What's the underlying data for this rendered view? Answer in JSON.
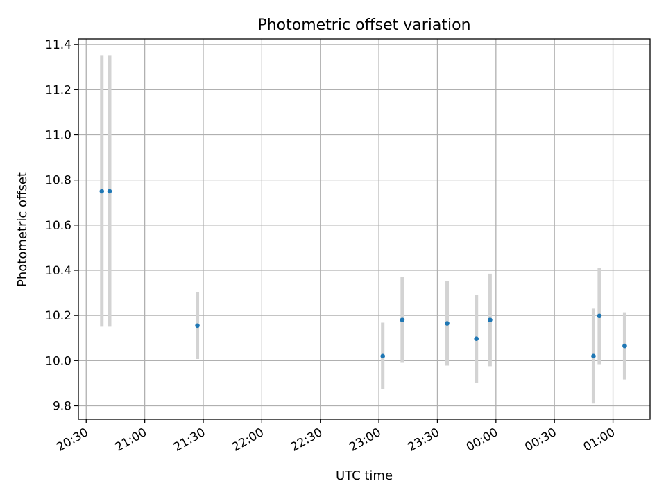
{
  "chart_data": {
    "type": "scatter",
    "title": "Photometric offset variation",
    "xlabel": "UTC time",
    "ylabel": "Photometric offset",
    "x_axis_kind": "time",
    "x_range": [
      "20:26",
      "01:19"
    ],
    "ylim": [
      9.74,
      11.425
    ],
    "grid": true,
    "legend": "none",
    "x_ticks": [
      "20:30",
      "21:00",
      "21:30",
      "22:00",
      "22:30",
      "23:00",
      "23:30",
      "00:00",
      "00:30",
      "01:00"
    ],
    "y_ticks": [
      "9.8",
      "10.0",
      "10.2",
      "10.4",
      "10.6",
      "10.8",
      "11.0",
      "11.2",
      "11.4"
    ],
    "points": [
      {
        "t": "20:38",
        "y": 10.75,
        "err": 0.6
      },
      {
        "t": "20:42",
        "y": 10.75,
        "err": 0.6
      },
      {
        "t": "21:27",
        "y": 10.155,
        "err": 0.148
      },
      {
        "t": "23:02",
        "y": 10.02,
        "err": 0.148
      },
      {
        "t": "23:12",
        "y": 10.18,
        "err": 0.19
      },
      {
        "t": "23:35",
        "y": 10.165,
        "err": 0.187
      },
      {
        "t": "23:50",
        "y": 10.097,
        "err": 0.195
      },
      {
        "t": "23:57",
        "y": 10.18,
        "err": 0.205
      },
      {
        "t": "00:50",
        "y": 10.02,
        "err": 0.21
      },
      {
        "t": "00:53",
        "y": 10.198,
        "err": 0.214
      },
      {
        "t": "01:06",
        "y": 10.065,
        "err": 0.149
      }
    ],
    "colors": {
      "marker": "#1f77b4",
      "errorbar": "#d3d3d3",
      "grid": "#b0b0b0",
      "frame": "#000000"
    }
  }
}
